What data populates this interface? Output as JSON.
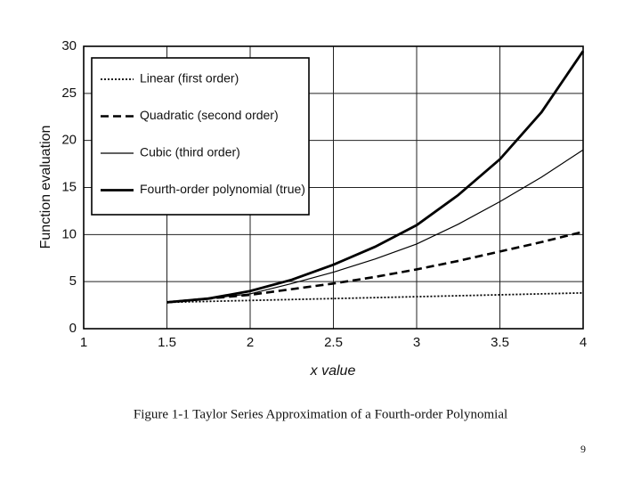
{
  "chart_data": {
    "type": "line",
    "caption": "Figure 1-1    Taylor Series Approximation of a Fourth-order Polynomial",
    "xlabel": "x value",
    "ylabel": "Function evaluation",
    "x": [
      1.5,
      1.75,
      2,
      2.25,
      2.5,
      2.75,
      3,
      3.25,
      3.5,
      3.75,
      4
    ],
    "series": [
      {
        "name": "Linear (first order)",
        "color": "#000000",
        "style": "dotted",
        "width": 1.8,
        "values": [
          2.8,
          2.9,
          3.0,
          3.1,
          3.2,
          3.3,
          3.4,
          3.5,
          3.6,
          3.7,
          3.8
        ]
      },
      {
        "name": "Quadratic (second order)",
        "color": "#000000",
        "style": "dashed",
        "width": 2.6,
        "values": [
          2.8,
          3.2,
          3.6,
          4.2,
          4.8,
          5.5,
          6.3,
          7.2,
          8.2,
          9.2,
          10.3
        ]
      },
      {
        "name": "Cubic (third order)",
        "color": "#000000",
        "style": "solid",
        "width": 1.2,
        "values": [
          2.8,
          3.2,
          3.7,
          4.8,
          6.0,
          7.4,
          9.0,
          11.1,
          13.5,
          16.1,
          19.0
        ]
      },
      {
        "name": "Fourth-order polynomial (true)",
        "color": "#000000",
        "style": "solid",
        "width": 2.8,
        "values": [
          2.8,
          3.2,
          4.0,
          5.2,
          6.8,
          8.7,
          11.0,
          14.2,
          18.0,
          23.0,
          29.5
        ]
      }
    ],
    "xlim": [
      1,
      4
    ],
    "xticks": [
      1,
      1.5,
      2,
      2.5,
      3,
      3.5,
      4
    ],
    "ylim": [
      0,
      30
    ],
    "yticks": [
      0,
      5,
      10,
      15,
      20,
      25,
      30
    ],
    "grid": true,
    "legend": "upper left"
  },
  "slide": {
    "page_number": 9
  }
}
